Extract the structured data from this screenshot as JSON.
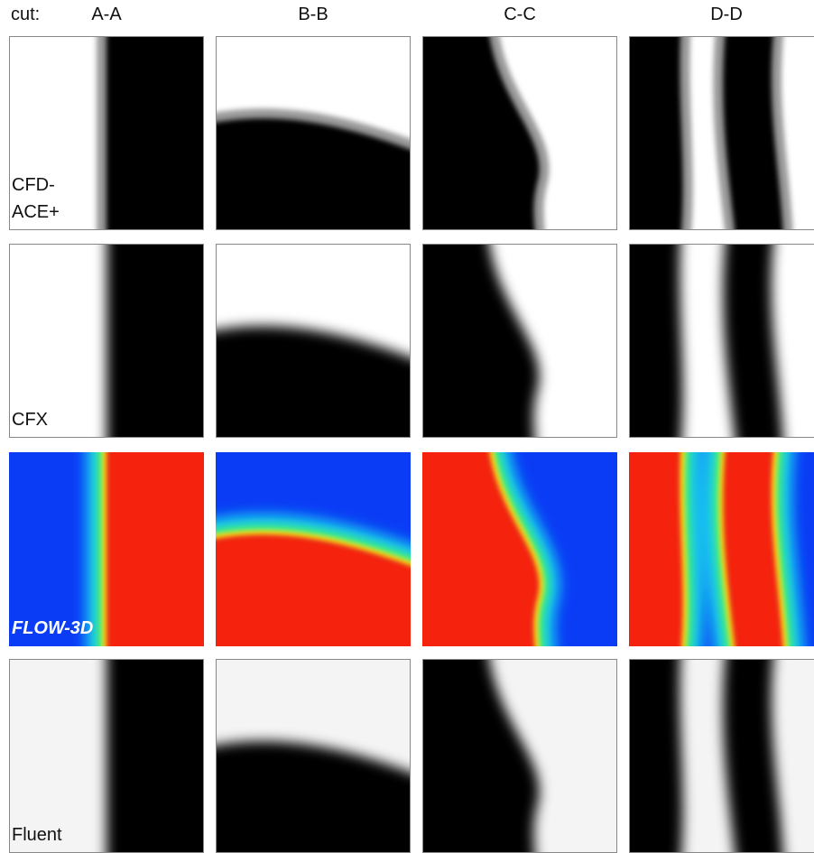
{
  "header": {
    "cut_label": "cut:",
    "columns": [
      "A-A",
      "B-B",
      "C-C",
      "D-D"
    ]
  },
  "rows": [
    {
      "label_lines": [
        "CFD-",
        "ACE+"
      ]
    },
    {
      "label_lines": [
        "CFX"
      ]
    },
    {
      "label_lines": [
        "FLOW-3D"
      ]
    },
    {
      "label_lines": [
        "Fluent"
      ]
    }
  ]
}
